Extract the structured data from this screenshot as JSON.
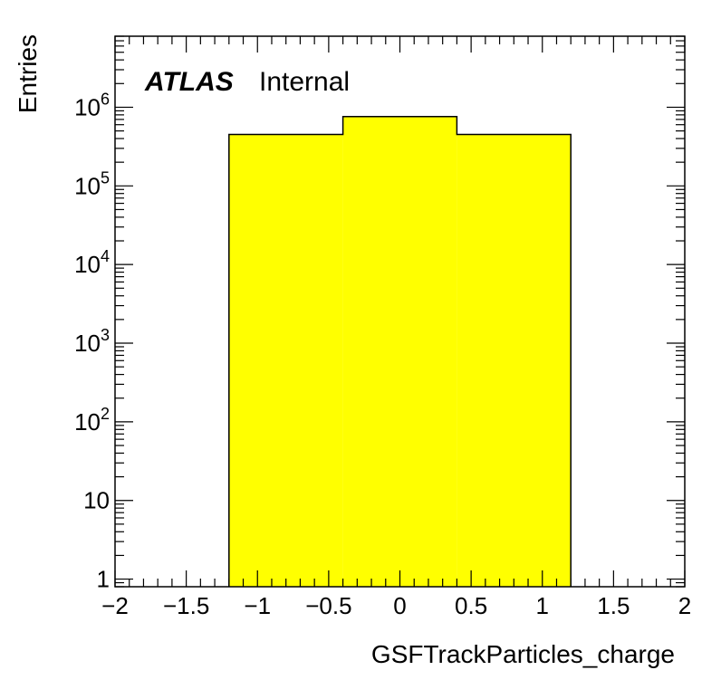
{
  "chart_data": {
    "type": "bar",
    "histogram": true,
    "xlabel": "GSFTrackParticles_charge",
    "ylabel": "Entries",
    "label_atlas": "ATLAS",
    "label_status": "Internal",
    "xlim": [
      -2,
      2
    ],
    "ylim": [
      0.8,
      8000000
    ],
    "yscale": "log",
    "x_ticks": [
      "−2",
      "−1.5",
      "−1",
      "−0.5",
      "0",
      "0.5",
      "1",
      "1.5",
      "2"
    ],
    "y_ticks": [
      {
        "value": 1,
        "base": "1",
        "exp": ""
      },
      {
        "value": 10,
        "base": "10",
        "exp": ""
      },
      {
        "value": 100,
        "base": "10",
        "exp": "2"
      },
      {
        "value": 1000,
        "base": "10",
        "exp": "3"
      },
      {
        "value": 10000,
        "base": "10",
        "exp": "4"
      },
      {
        "value": 100000,
        "base": "10",
        "exp": "5"
      },
      {
        "value": 1000000,
        "base": "10",
        "exp": "6"
      }
    ],
    "bins": [
      {
        "low": -1.2,
        "high": -0.4,
        "value": 450000
      },
      {
        "low": -0.4,
        "high": 0.4,
        "value": 760000
      },
      {
        "low": 0.4,
        "high": 1.2,
        "value": 450000
      }
    ],
    "fill_color": "#ffff00",
    "line_color": "#000000",
    "grid": false
  }
}
